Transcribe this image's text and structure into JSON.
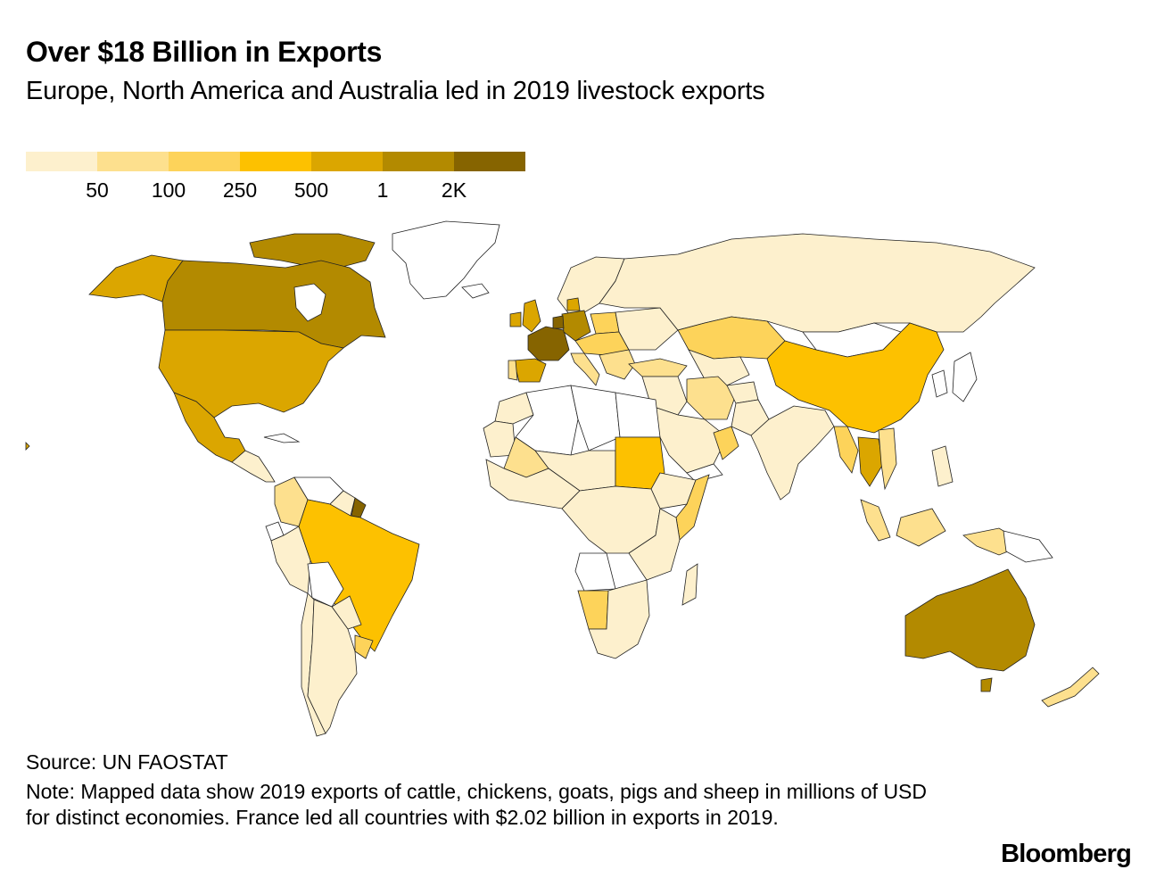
{
  "title": "Over $18 Billion in Exports",
  "subtitle": "Europe, North America and Australia led in 2019 livestock exports",
  "legend": {
    "colors": [
      "#fdf0cd",
      "#fde08e",
      "#fdd35a",
      "#fdc100",
      "#dba600",
      "#b38a00",
      "#866400"
    ],
    "ticks": [
      "50",
      "100",
      "250",
      "500",
      "1",
      "2K"
    ]
  },
  "map": {
    "colors": {
      "no_data": "#ffffff",
      "bin1": "#fdf0cd",
      "bin2": "#fde08e",
      "bin3": "#fdd35a",
      "bin4": "#fdc100",
      "bin5": "#dba600",
      "bin6": "#b38a00",
      "bin7": "#866400"
    }
  },
  "source": "Source: UN FAOSTAT",
  "note": "Note: Mapped data show 2019 exports of cattle, chickens, goats, pigs and sheep in millions of USD for distinct economies. France led all countries with $2.02 billion in exports in 2019.",
  "brand": "Bloomberg"
}
